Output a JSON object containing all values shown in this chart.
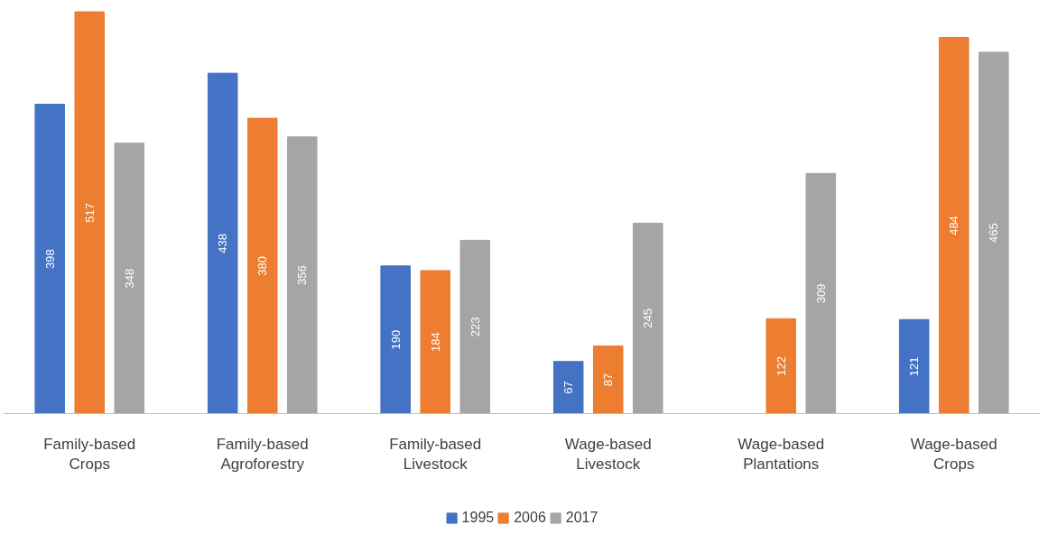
{
  "chart_data": {
    "type": "bar",
    "categories": [
      "Family-based Crops",
      "Family-based Agroforestry",
      "Family-based Livestock",
      "Wage-based Livestock",
      "Wage-based Plantations",
      "Wage-based Crops"
    ],
    "series": [
      {
        "name": "1995",
        "color": "#4472c4",
        "values": [
          398,
          438,
          190,
          67,
          null,
          121
        ]
      },
      {
        "name": "2006",
        "color": "#ed7d31",
        "values": [
          517,
          380,
          184,
          87,
          122,
          484
        ]
      },
      {
        "name": "2017",
        "color": "#a5a5a5",
        "values": [
          348,
          356,
          223,
          245,
          309,
          465
        ]
      }
    ],
    "ylim": [
      0,
      520
    ],
    "data_labels": true,
    "legend": "bottom",
    "grid": false,
    "tick_labels": "x"
  }
}
